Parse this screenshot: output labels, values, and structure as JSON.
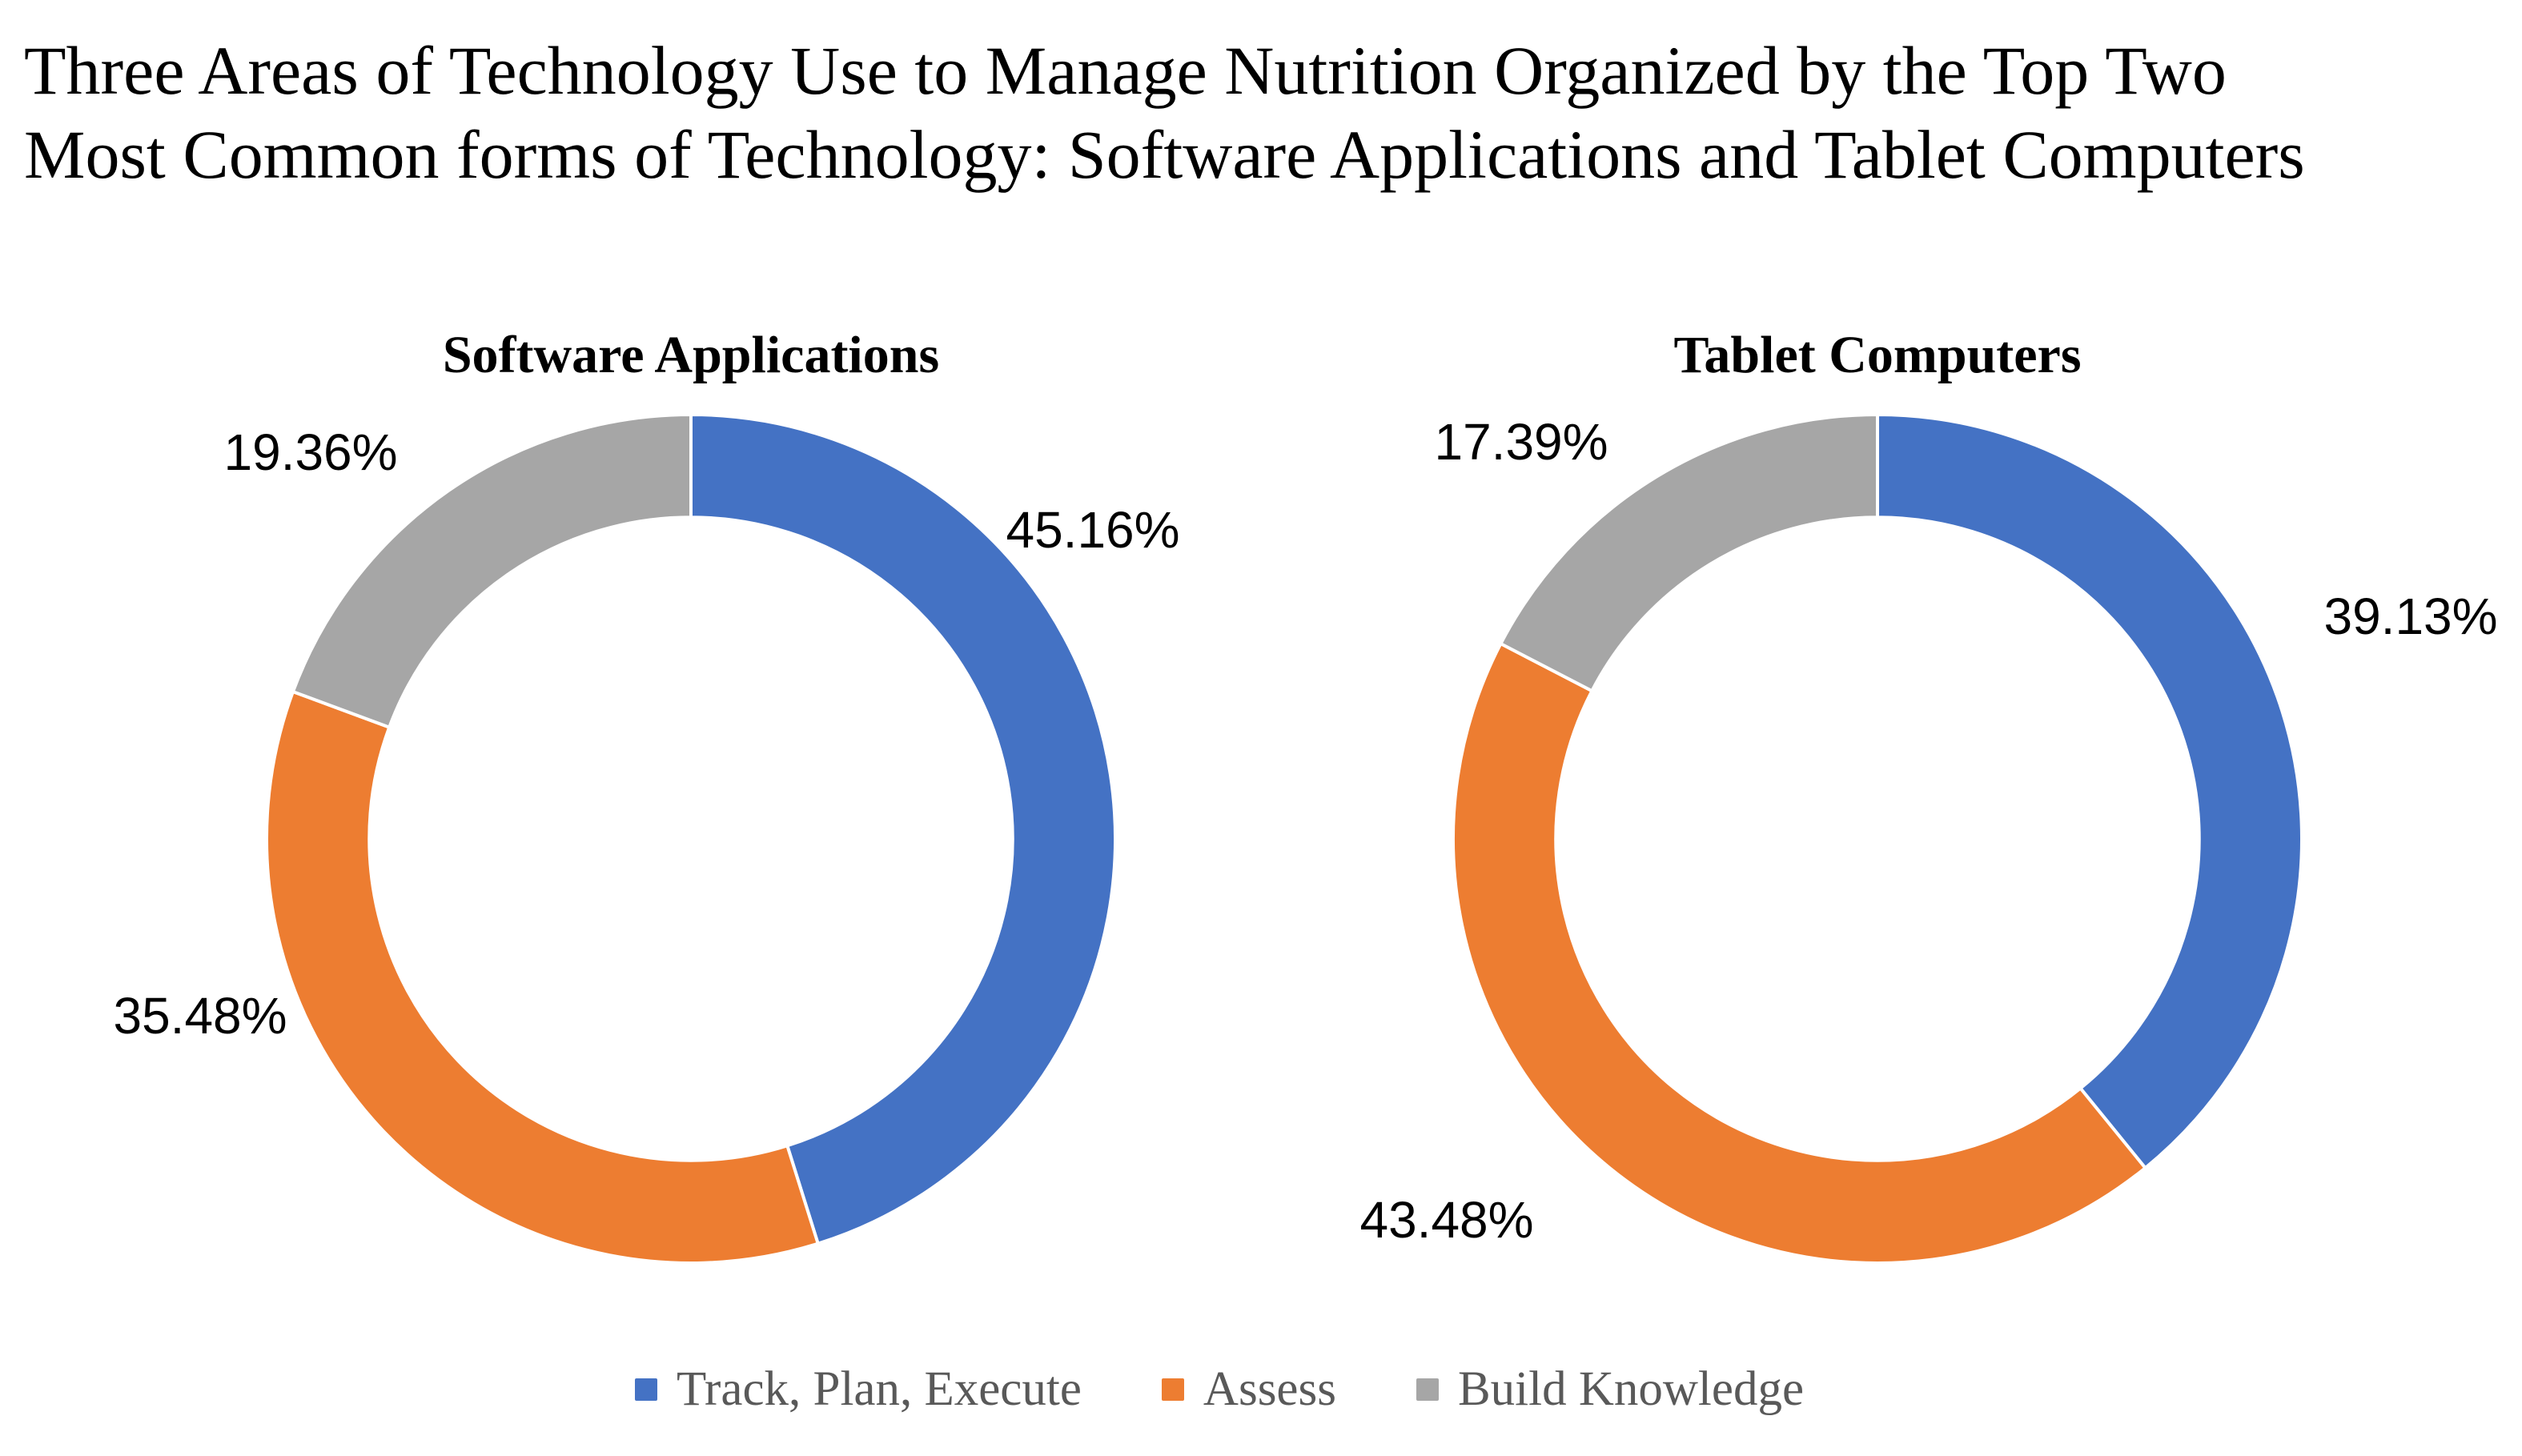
{
  "title": {
    "lines": [
      "Three Areas of Technology Use to Manage Nutrition Organized by the Top Two",
      "Most Common forms of Technology: Software Applications and Tablet Computers"
    ]
  },
  "colors": {
    "blue": "#4472C4",
    "orange": "#ED7D31",
    "gray": "#A6A6A6",
    "legend_text": "#595959",
    "label_text": "#000000",
    "separator": "#FFFFFF"
  },
  "legend": {
    "position": "bottom",
    "items": [
      {
        "label": "Track, Plan, Execute",
        "color": "#4472C4"
      },
      {
        "label": "Assess",
        "color": "#ED7D31"
      },
      {
        "label": "Build Knowledge",
        "color": "#A6A6A6"
      }
    ]
  },
  "chart_data": [
    {
      "type": "pie",
      "subtype": "donut",
      "title": "Software Applications",
      "categories": [
        "Track, Plan, Execute",
        "Assess",
        "Build Knowledge"
      ],
      "values": [
        45.16,
        35.48,
        19.36
      ],
      "labels": [
        "45.16%",
        "35.48%",
        "19.36%"
      ],
      "colors": [
        "#4472C4",
        "#ED7D31",
        "#A6A6A6"
      ],
      "units": "%",
      "hole_ratio": 0.758,
      "start_angle_deg": 0,
      "direction": "clockwise",
      "grid": false,
      "legend_position": "bottom-shared"
    },
    {
      "type": "pie",
      "subtype": "donut",
      "title": "Tablet Computers",
      "categories": [
        "Track, Plan, Execute",
        "Assess",
        "Build Knowledge"
      ],
      "values": [
        39.13,
        43.48,
        17.39
      ],
      "labels": [
        "39.13%",
        "43.48%",
        "17.39%"
      ],
      "colors": [
        "#4472C4",
        "#ED7D31",
        "#A6A6A6"
      ],
      "units": "%",
      "hole_ratio": 0.758,
      "start_angle_deg": 0,
      "direction": "clockwise",
      "grid": false,
      "legend_position": "bottom-shared"
    }
  ]
}
